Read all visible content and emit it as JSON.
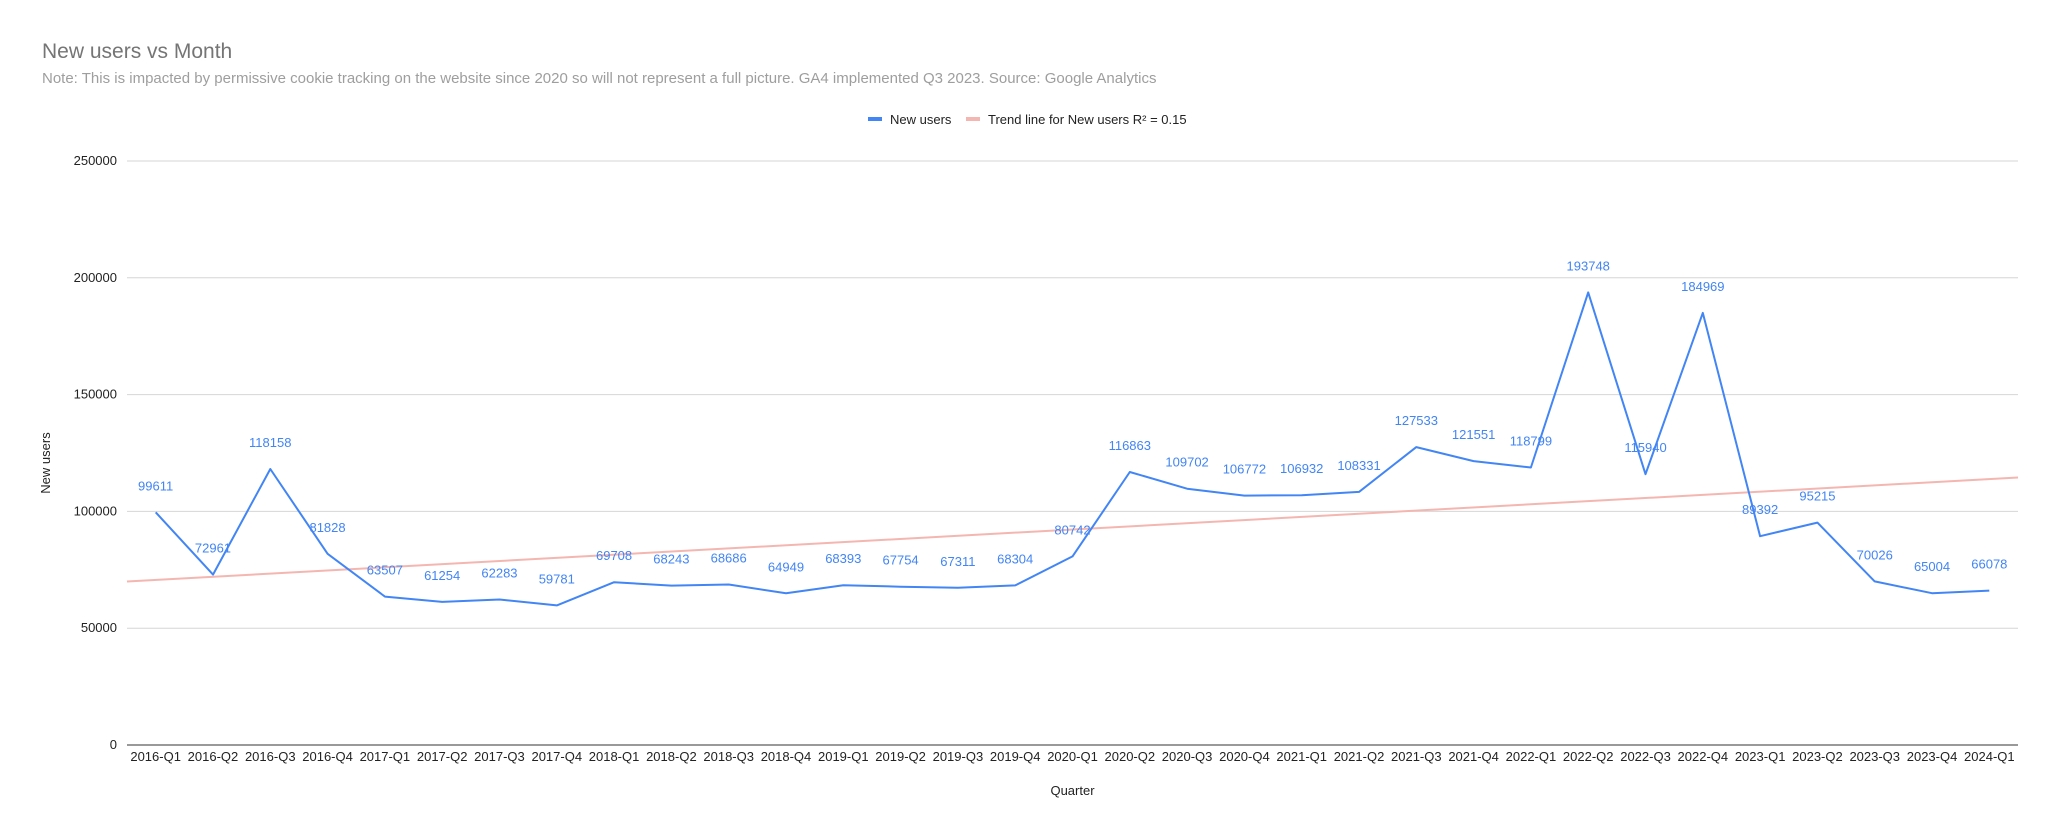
{
  "chart_data": {
    "type": "line",
    "title": "New users vs Month",
    "subtitle": "Note: This is impacted by permissive cookie tracking on the website since 2020 so will not represent a full picture. GA4 implemented Q3 2023. Source: Google Analytics",
    "xlabel": "Quarter",
    "ylabel": "New users",
    "ylim": [
      0,
      250000
    ],
    "yticks": [
      "0",
      "50000",
      "100000",
      "150000",
      "200000",
      "250000"
    ],
    "grid": true,
    "legend_position": "top-center",
    "categories": [
      "2016-Q1",
      "2016-Q2",
      "2016-Q3",
      "2016-Q4",
      "2017-Q1",
      "2017-Q2",
      "2017-Q3",
      "2017-Q4",
      "2018-Q1",
      "2018-Q2",
      "2018-Q3",
      "2018-Q4",
      "2019-Q1",
      "2019-Q2",
      "2019-Q3",
      "2019-Q4",
      "2020-Q1",
      "2020-Q2",
      "2020-Q3",
      "2020-Q4",
      "2021-Q1",
      "2021-Q2",
      "2021-Q3",
      "2021-Q4",
      "2022-Q1",
      "2022-Q2",
      "2022-Q3",
      "2022-Q4",
      "2023-Q1",
      "2023-Q2",
      "2023-Q3",
      "2023-Q4",
      "2024-Q1"
    ],
    "series": [
      {
        "name": "New users",
        "color": "#4285f4",
        "values": [
          99611,
          72961,
          118158,
          81828,
          63507,
          61254,
          62283,
          59781,
          69708,
          68243,
          68686,
          64949,
          68393,
          67754,
          67311,
          68304,
          80742,
          116863,
          109702,
          106772,
          106932,
          108331,
          127533,
          121551,
          118799,
          193748,
          115940,
          184969,
          89392,
          95215,
          70026,
          65004,
          66078
        ]
      }
    ],
    "trendline": {
      "name": "Trend line for New users R² = 0.15",
      "color": "#f4b6b0",
      "start": 70000,
      "end": 114500
    }
  }
}
